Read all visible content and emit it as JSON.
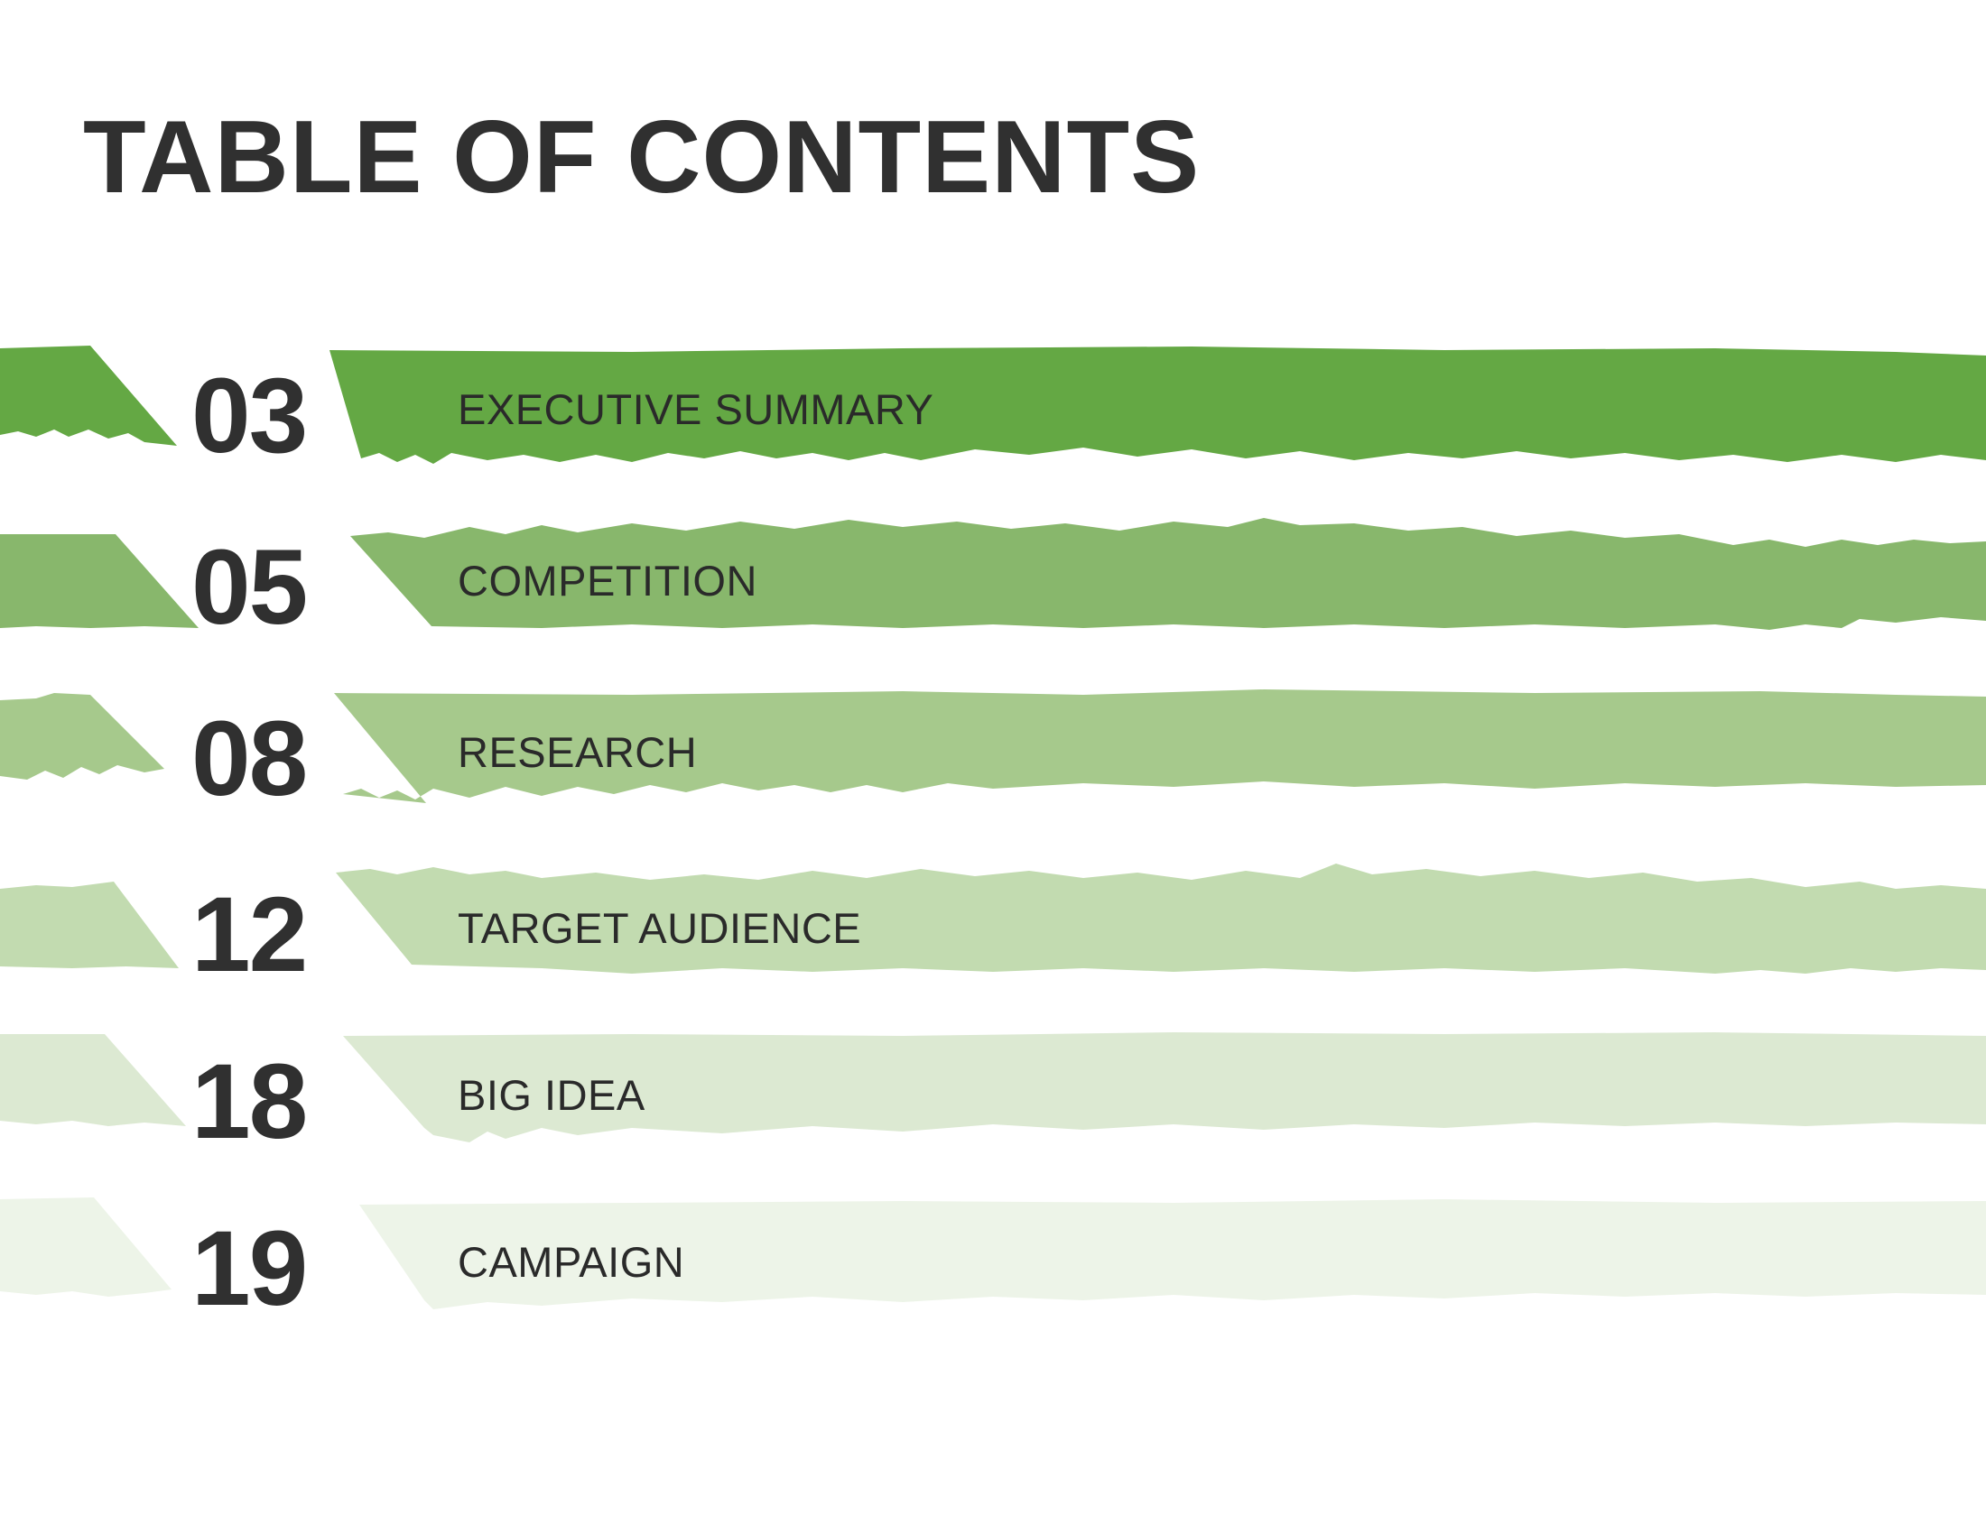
{
  "title": "TABLE OF CONTENTS",
  "entries": [
    {
      "number": "03",
      "label": "EXECUTIVE SUMMARY",
      "color": "#64a844"
    },
    {
      "number": "05",
      "label": "COMPETITION",
      "color": "#88b76c"
    },
    {
      "number": "08",
      "label": "RESEARCH",
      "color": "#a6c98c"
    },
    {
      "number": "12",
      "label": "TARGET AUDIENCE",
      "color": "#c2dbb0"
    },
    {
      "number": "18",
      "label": "BIG IDEA",
      "color": "#dce9d2"
    },
    {
      "number": "19",
      "label": "CAMPAIGN",
      "color": "#edf4e8"
    }
  ]
}
